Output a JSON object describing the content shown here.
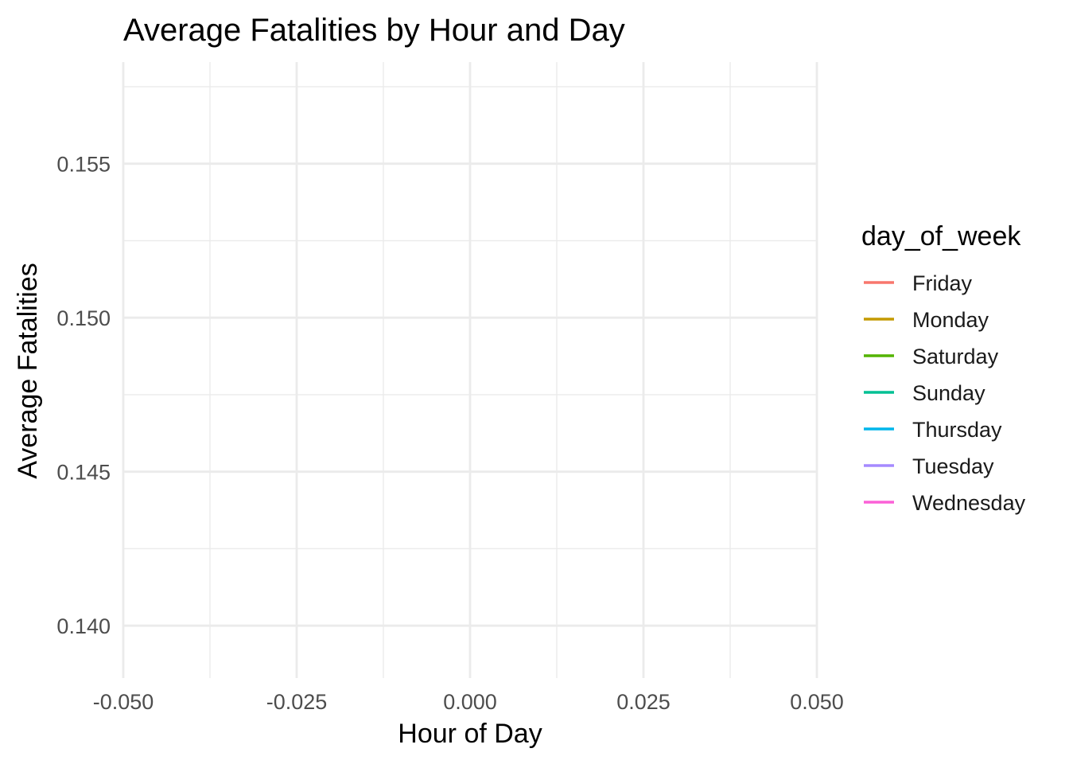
{
  "chart_data": {
    "type": "line",
    "title": "Average Fatalities by Hour and Day",
    "xlabel": "Hour of Day",
    "ylabel": "Average Fatalities",
    "xlim": [
      -0.05,
      0.05
    ],
    "ylim": [
      0.1383,
      0.1583
    ],
    "x_ticks": [
      -0.05,
      -0.025,
      0.0,
      0.025,
      0.05
    ],
    "x_tick_labels": [
      "-0.050",
      "-0.025",
      "0.000",
      "0.025",
      "0.050"
    ],
    "y_ticks": [
      0.14,
      0.145,
      0.15,
      0.155
    ],
    "y_tick_labels": [
      "0.140",
      "0.145",
      "0.150",
      "0.155"
    ],
    "grid": true,
    "legend": {
      "title": "day_of_week",
      "placement": "right"
    },
    "series": [
      {
        "name": "Friday",
        "color": "#F8766D",
        "values": []
      },
      {
        "name": "Monday",
        "color": "#C49A00",
        "values": []
      },
      {
        "name": "Saturday",
        "color": "#53B400",
        "values": []
      },
      {
        "name": "Sunday",
        "color": "#00C094",
        "values": []
      },
      {
        "name": "Thursday",
        "color": "#00B6EB",
        "values": []
      },
      {
        "name": "Tuesday",
        "color": "#A58AFF",
        "values": []
      },
      {
        "name": "Wednesday",
        "color": "#FB61D7",
        "values": []
      }
    ]
  }
}
